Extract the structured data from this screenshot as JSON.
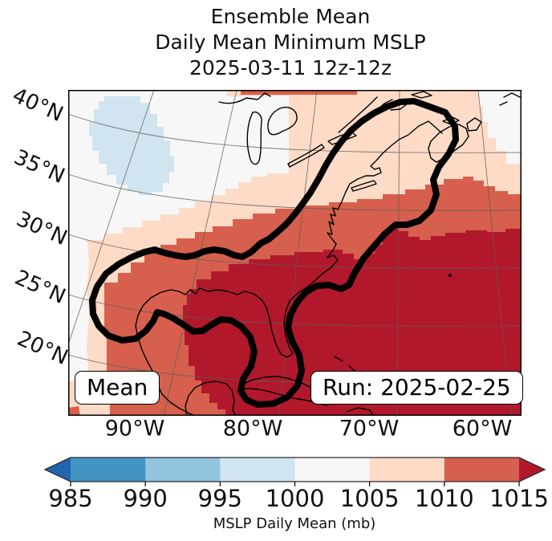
{
  "title": {
    "line1": "Ensemble Mean",
    "line2": "Daily Mean Minimum MSLP",
    "line3": "2025-03-11 12z-12z"
  },
  "map": {
    "mean_label": "Mean",
    "run_label": "Run: 2025-02-25"
  },
  "axes": {
    "lat_ticks": [
      "40°N",
      "35°N",
      "30°N",
      "25°N",
      "20°N"
    ],
    "lon_ticks": [
      "90°W",
      "80°W",
      "70°W",
      "60°W"
    ]
  },
  "colorbar": {
    "ticks": [
      "985",
      "990",
      "995",
      "1000",
      "1005",
      "1010",
      "1015"
    ],
    "label": "MSLP Daily Mean (mb)",
    "segment_colors": [
      "#4393c3",
      "#92c5de",
      "#d1e5f0",
      "#f7f7f7",
      "#fddbc7",
      "#d6604d"
    ],
    "under_color": "#2166ac",
    "over_color": "#b2182b"
  },
  "colors": {
    "band_995_1000": "#d1e5f0",
    "band_1000_1005": "#f7f7f7",
    "band_1005_1010": "#fddbc7",
    "band_1010_1015": "#d6604d",
    "band_over_1015": "#b2182b",
    "gridline": "#5c5c5c",
    "coastline": "#000000",
    "contour": "#000000"
  },
  "chart_data": {
    "type": "filled_contour_map",
    "title": "Ensemble Mean Daily Mean Minimum MSLP 2025-03-11 12z-12z",
    "variable": "MSLP Daily Mean (mb)",
    "model_run_annotation": "Run: 2025-02-25",
    "member_annotation": "Mean",
    "valid_period": "2025-03-11 12z-12z",
    "levels_mb": [
      985,
      990,
      995,
      1000,
      1005,
      1010,
      1015
    ],
    "colormap": "RdBu_r with under/over extend arrows",
    "graticule_deg": 10,
    "lat_range_labeled": [
      "20°N",
      "40°N"
    ],
    "lon_range_labeled": [
      "90°W",
      "60°W"
    ],
    "region": "Eastern North America and western Atlantic (Great Lakes, US East Coast, Gulf of Mexico, Cuba, Nova Scotia)",
    "bands": [
      {
        "range_mb": "995-1000",
        "color": "#d1e5f0",
        "where": "small pixelated patch over the central US (upper left)"
      },
      {
        "range_mb": "1000-1005",
        "color": "#f7f7f7",
        "where": "upper-left quadrant (midwest US), thin strip on west edge, patches near Gulf of St. Lawrence (top right)"
      },
      {
        "range_mb": "1005-1010",
        "color": "#fddbc7",
        "where": "diagonal band from Texas through the Great Lakes and New England to Nova Scotia"
      },
      {
        "range_mb": "1010-1015",
        "color": "#d6604d",
        "where": "band from western Gulf of Mexico along the southeast US coast toward the Maritimes"
      },
      {
        "range_mb": ">1015",
        "color": "#b2182b",
        "where": "southwest Atlantic, Florida, Caribbean - lower right of map"
      }
    ],
    "overlay_contour": "single thick black closed contour enclosing the Gulf of Mexico, Florida/Cuba lobe and a corridor up the US East Coast ending in a lobe over Nova Scotia"
  }
}
